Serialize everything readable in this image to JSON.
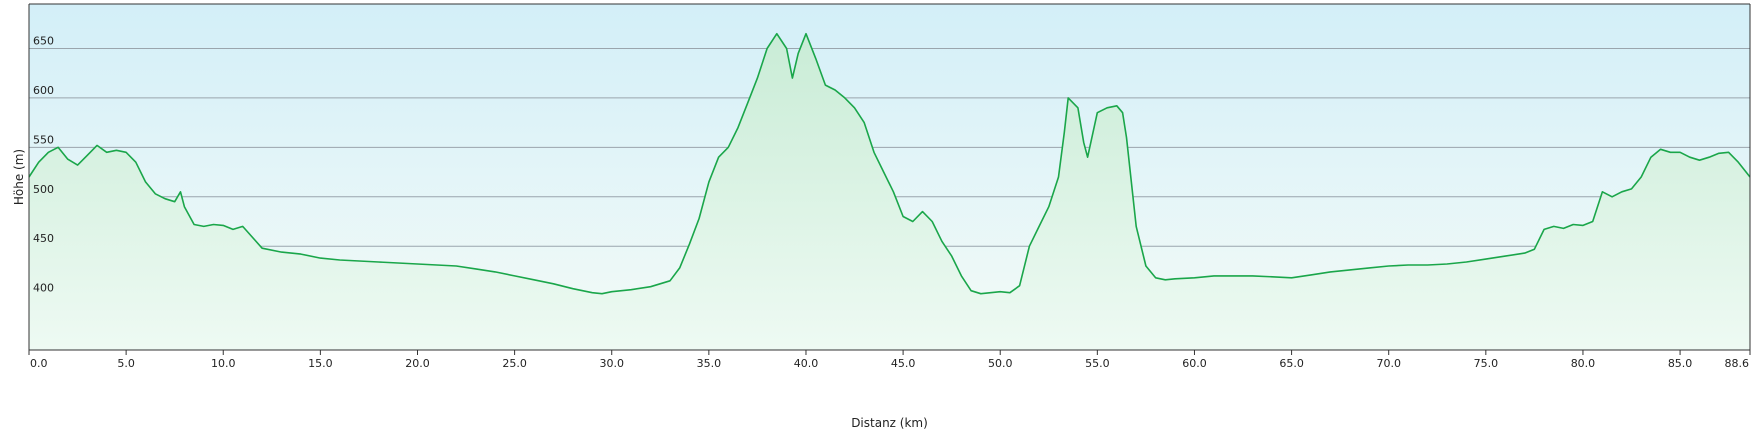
{
  "chart_data": {
    "type": "area",
    "title": "",
    "xlabel": "Distanz  (km)",
    "ylabel": "Höhe (m)",
    "xlim": [
      0,
      88.6
    ],
    "ylim": [
      345,
      695
    ],
    "x_ticks": [
      "0.0",
      "5.0",
      "10.0",
      "15.0",
      "20.0",
      "25.0",
      "30.0",
      "35.0",
      "40.0",
      "45.0",
      "50.0",
      "55.0",
      "60.0",
      "65.0",
      "70.0",
      "75.0",
      "80.0",
      "85.0",
      "88.6"
    ],
    "x_tick_values": [
      0,
      5,
      10,
      15,
      20,
      25,
      30,
      35,
      40,
      45,
      50,
      55,
      60,
      65,
      70,
      75,
      80,
      85,
      88.6
    ],
    "y_ticks": [
      "400",
      "450",
      "500",
      "550",
      "600",
      "650"
    ],
    "y_tick_values": [
      400,
      450,
      500,
      550,
      600,
      650
    ],
    "grid": true,
    "colors": {
      "line": "#1aa64a",
      "fill_top": "#c9ecd6",
      "fill_bottom": "#eefaf3",
      "bg_top": "#d3eff8",
      "bg_bottom": "#f4fbf7",
      "grid": "#9aa5ad"
    },
    "series": [
      {
        "x": [
          0,
          0.5,
          1.0,
          1.5,
          2.0,
          2.5,
          3.0,
          3.5,
          4.0,
          4.5,
          5.0,
          5.5,
          6.0,
          6.5,
          7.0,
          7.5,
          7.8,
          8.0,
          8.5,
          9.0,
          9.5,
          10.0,
          10.5,
          11.0,
          12.0,
          13.0,
          14.0,
          15.0,
          16.0,
          17.0,
          18.0,
          19.0,
          20.0,
          21.0,
          22.0,
          23.0,
          24.0,
          25.0,
          26.0,
          27.0,
          28.0,
          29.0,
          29.5,
          30.0,
          31.0,
          32.0,
          33.0,
          33.5,
          34.0,
          34.5,
          35.0,
          35.5,
          36.0,
          36.5,
          37.0,
          37.5,
          38.0,
          38.5,
          39.0,
          39.3,
          39.6,
          40.0,
          40.5,
          41.0,
          41.5,
          42.0,
          42.5,
          43.0,
          43.5,
          44.0,
          44.5,
          45.0,
          45.5,
          46.0,
          46.5,
          47.0,
          47.5,
          48.0,
          48.5,
          49.0,
          49.5,
          50.0,
          50.5,
          51.0,
          51.5,
          52.0,
          52.5,
          53.0,
          53.3,
          53.5,
          54.0,
          54.3,
          54.5,
          55.0,
          55.5,
          56.0,
          56.3,
          56.5,
          57.0,
          57.5,
          58.0,
          58.5,
          59.0,
          60.0,
          61.0,
          62.0,
          63.0,
          64.0,
          65.0,
          66.0,
          67.0,
          68.0,
          69.0,
          70.0,
          71.0,
          72.0,
          73.0,
          74.0,
          75.0,
          76.0,
          77.0,
          77.5,
          78.0,
          78.5,
          79.0,
          79.5,
          80.0,
          80.5,
          81.0,
          81.5,
          82.0,
          82.5,
          83.0,
          83.5,
          84.0,
          84.5,
          85.0,
          85.5,
          86.0,
          86.5,
          87.0,
          87.5,
          88.0,
          88.6
        ],
        "values": [
          520,
          535,
          545,
          550,
          538,
          532,
          542,
          552,
          545,
          547,
          545,
          535,
          515,
          503,
          498,
          495,
          505,
          490,
          472,
          470,
          472,
          471,
          467,
          470,
          448,
          444,
          442,
          438,
          436,
          435,
          434,
          433,
          432,
          431,
          430,
          427,
          424,
          420,
          416,
          412,
          407,
          403,
          402,
          404,
          406,
          409,
          415,
          428,
          452,
          478,
          515,
          540,
          550,
          570,
          595,
          620,
          650,
          665,
          650,
          620,
          645,
          665,
          640,
          613,
          608,
          600,
          590,
          575,
          545,
          525,
          505,
          480,
          475,
          485,
          475,
          455,
          440,
          420,
          405,
          402,
          403,
          404,
          403,
          410,
          450,
          470,
          490,
          520,
          565,
          600,
          590,
          555,
          540,
          585,
          590,
          592,
          585,
          560,
          470,
          430,
          418,
          416,
          417,
          418,
          420,
          420,
          420,
          419,
          418,
          421,
          424,
          426,
          428,
          430,
          431,
          431,
          432,
          434,
          437,
          440,
          443,
          447,
          467,
          470,
          468,
          472,
          471,
          475,
          505,
          500,
          505,
          508,
          520,
          540,
          548,
          545,
          545,
          540,
          537,
          540,
          544,
          545,
          535,
          520
        ]
      }
    ]
  }
}
